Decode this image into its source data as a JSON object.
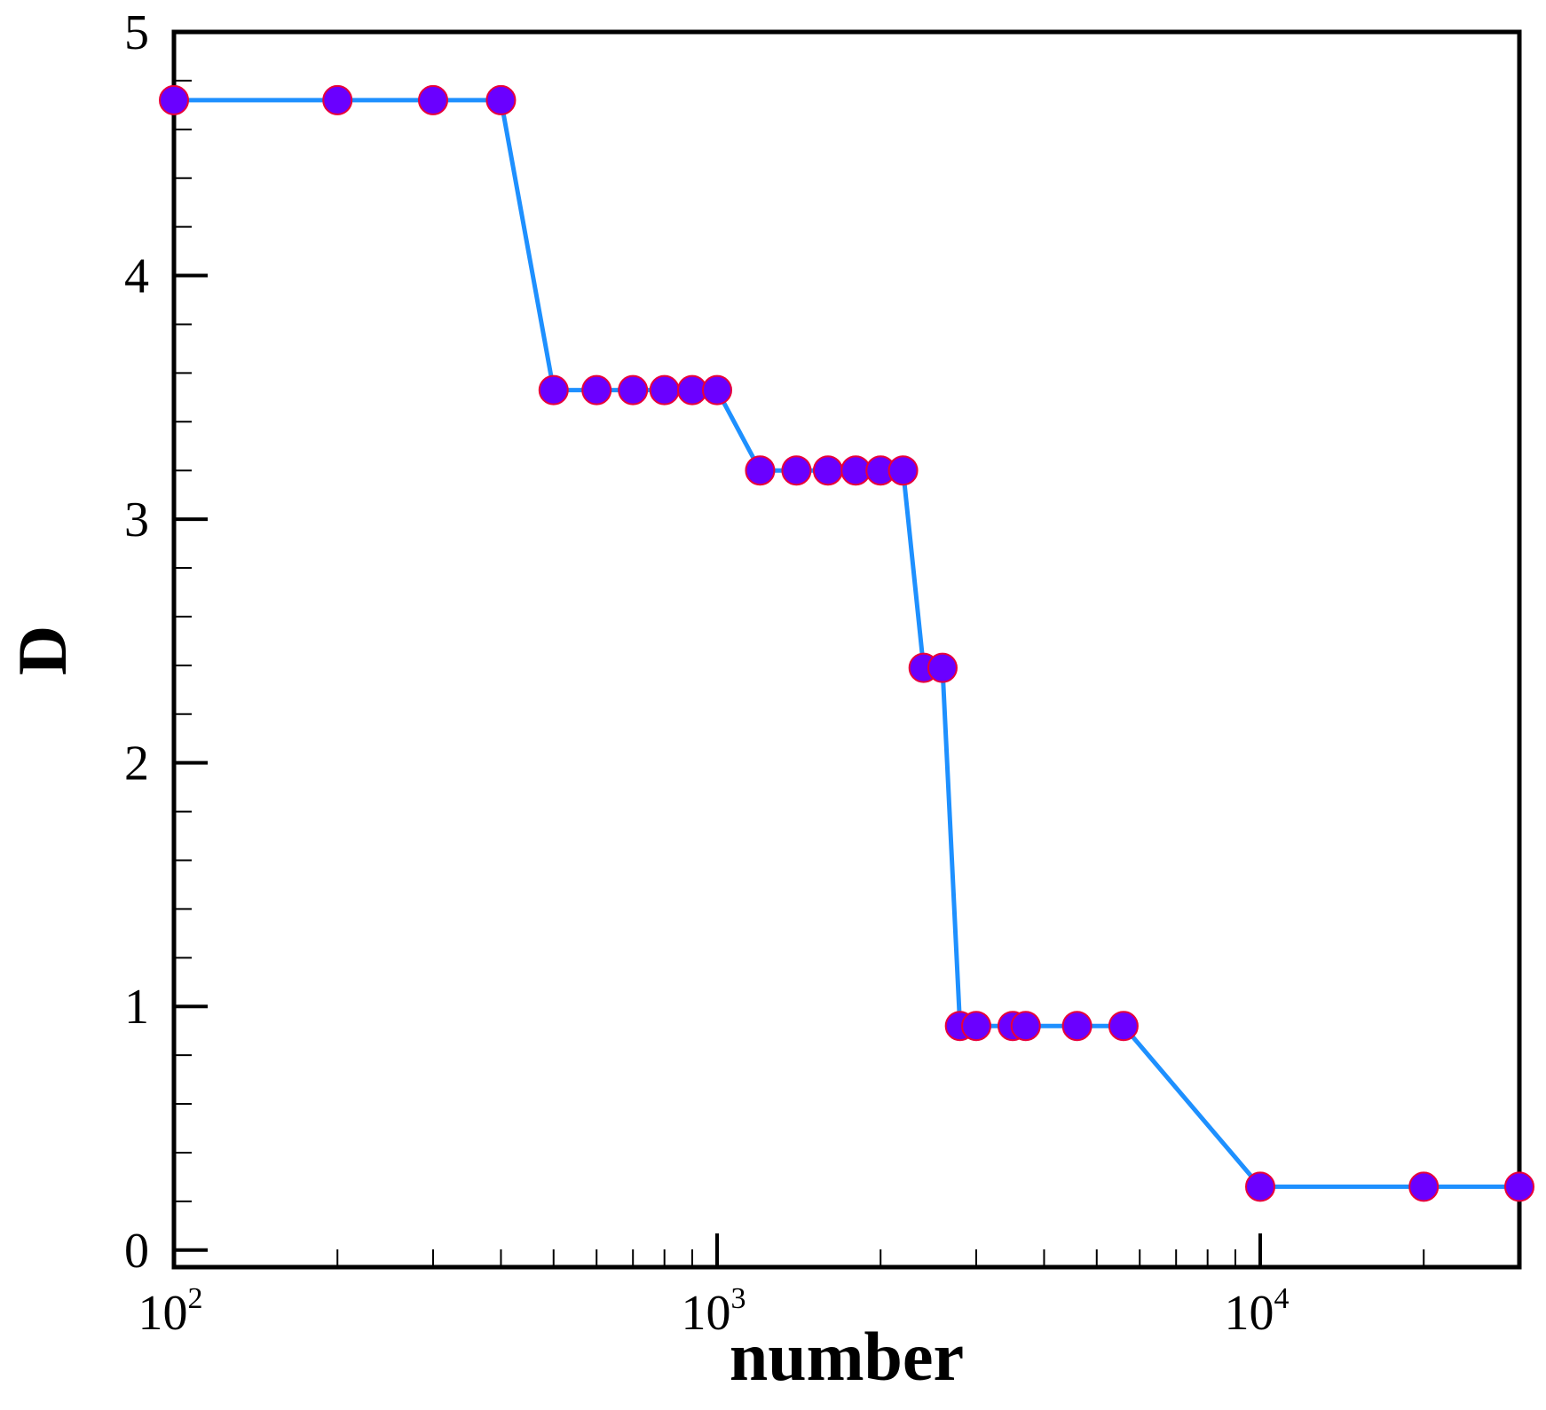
{
  "chart_data": {
    "type": "line",
    "xlabel": "number",
    "ylabel": "D",
    "x_scale": "log",
    "xlim": [
      100,
      30000
    ],
    "ylim": [
      -0.07,
      5.0
    ],
    "grid": false,
    "legend": "none",
    "x_ticks": [
      {
        "value": 100,
        "base": "10",
        "exp": "2"
      },
      {
        "value": 1000,
        "base": "10",
        "exp": "3"
      },
      {
        "value": 10000,
        "base": "10",
        "exp": "4"
      }
    ],
    "x_minor_ticks": [
      200,
      300,
      400,
      500,
      600,
      700,
      800,
      900,
      2000,
      3000,
      4000,
      5000,
      6000,
      7000,
      8000,
      9000,
      20000
    ],
    "y_ticks": [
      {
        "value": 0,
        "label": "0"
      },
      {
        "value": 1,
        "label": "1"
      },
      {
        "value": 2,
        "label": "2"
      },
      {
        "value": 3,
        "label": "3"
      },
      {
        "value": 4,
        "label": "4"
      },
      {
        "value": 5,
        "label": "5"
      }
    ],
    "y_minor_ticks": [
      0.2,
      0.4,
      0.6,
      0.8,
      1.2,
      1.4,
      1.6,
      1.8,
      2.2,
      2.4,
      2.6,
      2.8,
      3.2,
      3.4,
      3.6,
      3.8,
      4.2,
      4.4,
      4.6,
      4.8
    ],
    "colors": {
      "line": "#1e90ff",
      "marker_fill": "#6a00ff",
      "marker_edge": "#e8003a",
      "axes": "#000000"
    },
    "series": [
      {
        "points": [
          {
            "x": 100,
            "y": 4.72
          },
          {
            "x": 200,
            "y": 4.72
          },
          {
            "x": 300,
            "y": 4.72
          },
          {
            "x": 400,
            "y": 4.72
          },
          {
            "x": 500,
            "y": 3.53
          },
          {
            "x": 600,
            "y": 3.53
          },
          {
            "x": 700,
            "y": 3.53
          },
          {
            "x": 800,
            "y": 3.53
          },
          {
            "x": 900,
            "y": 3.53
          },
          {
            "x": 1000,
            "y": 3.53
          },
          {
            "x": 1200,
            "y": 3.2
          },
          {
            "x": 1400,
            "y": 3.2
          },
          {
            "x": 1600,
            "y": 3.2
          },
          {
            "x": 1800,
            "y": 3.2
          },
          {
            "x": 2000,
            "y": 3.2
          },
          {
            "x": 2200,
            "y": 3.2
          },
          {
            "x": 2400,
            "y": 2.39
          },
          {
            "x": 2600,
            "y": 2.39
          },
          {
            "x": 2800,
            "y": 0.92
          },
          {
            "x": 3000,
            "y": 0.92
          },
          {
            "x": 3500,
            "y": 0.92
          },
          {
            "x": 3700,
            "y": 0.92
          },
          {
            "x": 4600,
            "y": 0.92
          },
          {
            "x": 5600,
            "y": 0.92
          },
          {
            "x": 10000,
            "y": 0.26
          },
          {
            "x": 20000,
            "y": 0.26
          },
          {
            "x": 30000,
            "y": 0.26
          }
        ]
      }
    ]
  }
}
